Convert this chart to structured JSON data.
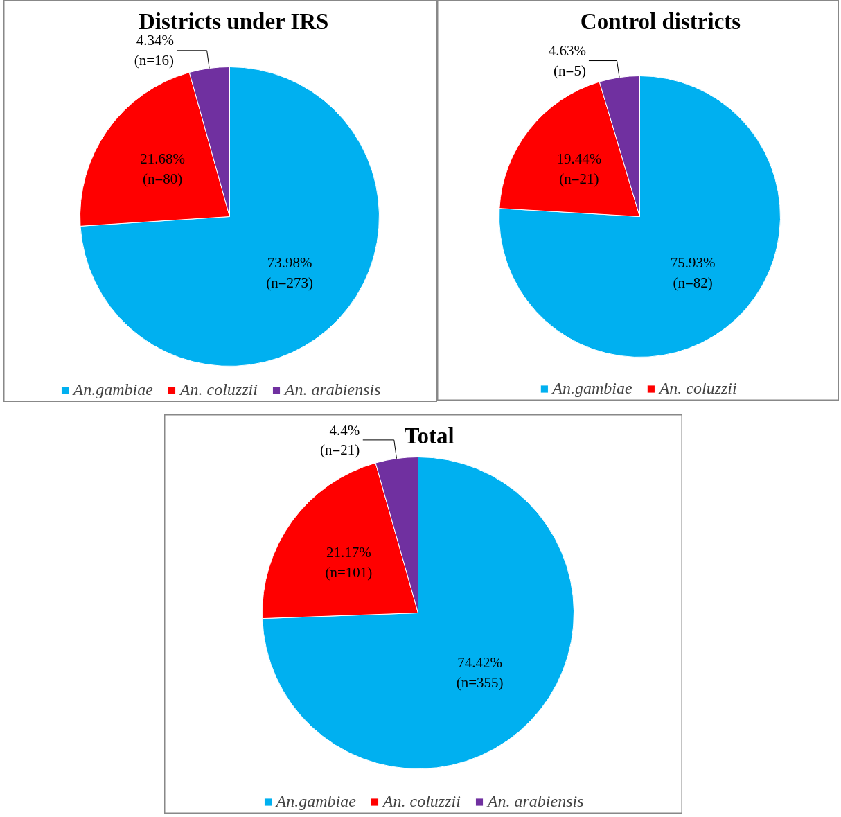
{
  "chart_data": [
    {
      "type": "pie",
      "title": "Districts under IRS",
      "categories": [
        "An.gambiae",
        "An. coluzzii",
        "An. arabiensis"
      ],
      "values": [
        73.98,
        21.68,
        4.34
      ],
      "colors": [
        "#00b0f0",
        "#ff0000",
        "#7030a0"
      ],
      "value_labels": [
        "73.98%\n(n=273)",
        "21.68%\n(n=80)",
        "4.34%\n(n=16)"
      ],
      "legend": "bottom"
    },
    {
      "type": "pie",
      "title": "Control districts",
      "categories": [
        "An.gambiae",
        "An. coluzzii",
        null
      ],
      "values": [
        75.93,
        19.44,
        4.63
      ],
      "colors": [
        "#00b0f0",
        "#ff0000",
        "#7030a0"
      ],
      "value_labels": [
        "75.93%\n(n=82)",
        "19.44%\n(n=21)",
        "4.63%\n(n=5)"
      ],
      "legend": "bottom"
    },
    {
      "type": "pie",
      "title": "Total",
      "categories": [
        "An.gambiae",
        "An. coluzzii",
        "An. arabiensis"
      ],
      "values": [
        74.42,
        21.17,
        4.4
      ],
      "colors": [
        "#00b0f0",
        "#ff0000",
        "#7030a0"
      ],
      "value_labels": [
        "74.42%\n(n=355)",
        "21.17%\n(n=101)",
        "4.4%\n(n=21)"
      ],
      "legend": "bottom"
    }
  ]
}
